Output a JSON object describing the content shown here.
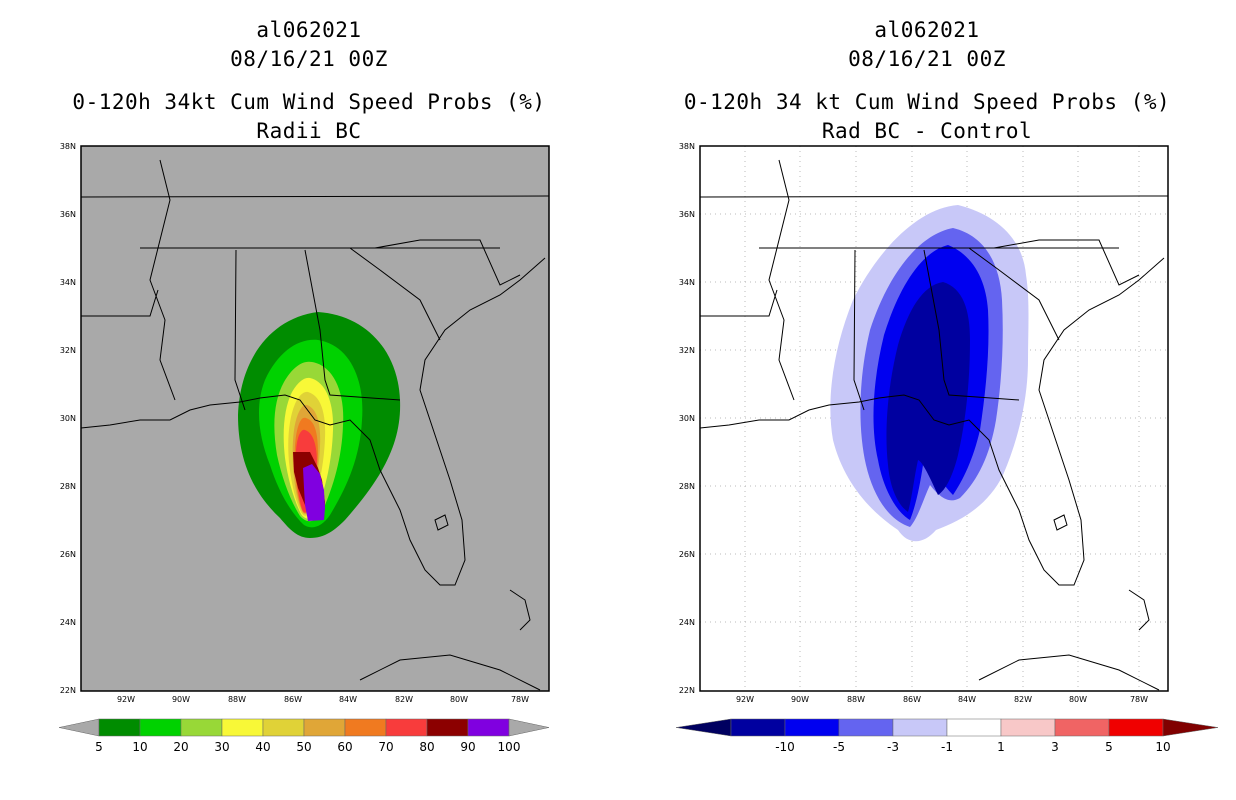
{
  "left": {
    "storm_id": "al062021",
    "datetime": "08/16/21 00Z",
    "title": "0-120h 34kt Cum Wind Speed Probs (%)",
    "subtitle": "Radii BC",
    "background": "#a9a9a9",
    "colorbar": {
      "labels": [
        "5",
        "10",
        "20",
        "30",
        "40",
        "50",
        "60",
        "70",
        "80",
        "90",
        "100"
      ],
      "colors": [
        "#008c00",
        "#00d200",
        "#98d837",
        "#f8f837",
        "#e0d237",
        "#e0a637",
        "#f07a20",
        "#f83c3c",
        "#8c0000",
        "#8000e0"
      ],
      "under": "#a9a9a9",
      "over": "#a9a9a9"
    }
  },
  "right": {
    "storm_id": "al062021",
    "datetime": "08/16/21 00Z",
    "title": "0-120h 34 kt Cum Wind Speed Probs (%)",
    "subtitle": "Rad BC - Control",
    "background": "#ffffff",
    "colorbar": {
      "labels": [
        "-10",
        "-5",
        "-3",
        "-1",
        "1",
        "3",
        "5",
        "10"
      ],
      "colors": [
        "#0000a0",
        "#0000f0",
        "#6464f0",
        "#c8c8f8",
        "#ffffff",
        "#f8c8c8",
        "#f06464",
        "#f00000"
      ],
      "under": "#000060",
      "over": "#800000"
    }
  },
  "axes": {
    "lat_labels": [
      "38N",
      "36N",
      "34N",
      "32N",
      "30N",
      "28N",
      "26N",
      "24N",
      "22N"
    ],
    "lon_labels": [
      "92W",
      "90W",
      "88W",
      "86W",
      "84W",
      "82W",
      "80W",
      "78W"
    ]
  }
}
